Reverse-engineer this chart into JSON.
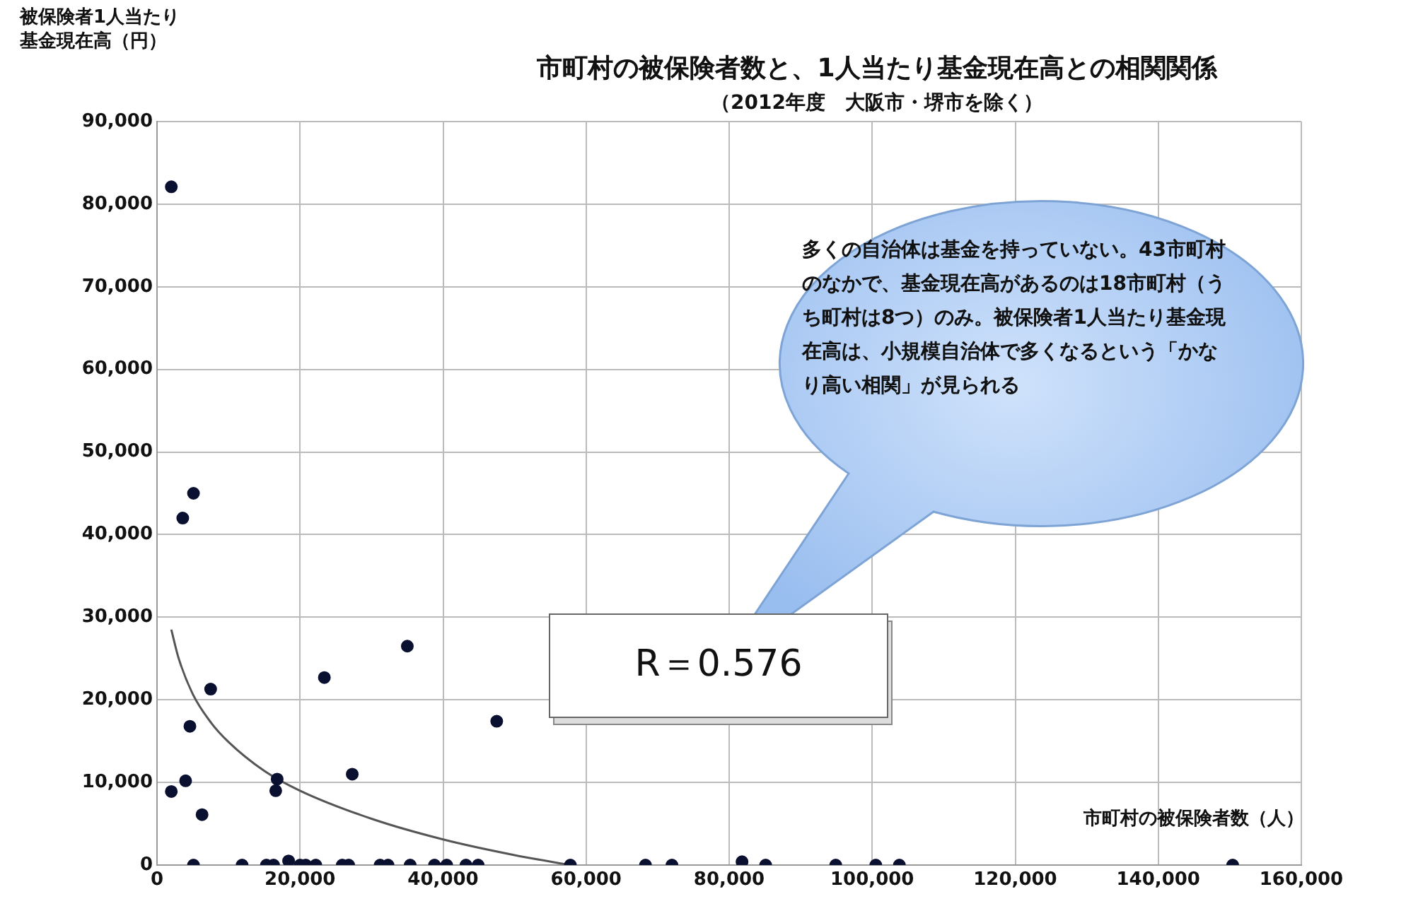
{
  "chart_data": {
    "type": "scatter",
    "title": "市町村の被保険者数と、1人当たり基金現在高との相関関係",
    "subtitle": "（2012年度　大阪市・堺市を除く）",
    "xlabel": "市町村の被保険者数（人）",
    "ylabel": "被保険者1人当たり基金現在高（円）",
    "xlim": [
      0,
      160000
    ],
    "xticks": [
      {
        "value": 0,
        "label": "0"
      },
      {
        "value": 20000,
        "label": "20,000"
      },
      {
        "value": 40000,
        "label": "40,000"
      },
      {
        "value": 60000,
        "label": "60,000"
      },
      {
        "value": 80000,
        "label": "80,000"
      },
      {
        "value": 100000,
        "label": "100,000"
      },
      {
        "value": 120000,
        "label": "120,000"
      },
      {
        "value": 140000,
        "label": "140,000"
      },
      {
        "value": 160000,
        "label": "160,000"
      }
    ],
    "ylim": [
      0,
      90000
    ],
    "yticks": [
      {
        "value": 0,
        "label": "0"
      },
      {
        "value": 10000,
        "label": "10,000"
      },
      {
        "value": 20000,
        "label": "20,000"
      },
      {
        "value": 30000,
        "label": "30,000"
      },
      {
        "value": 40000,
        "label": "40,000"
      },
      {
        "value": 50000,
        "label": "50,000"
      },
      {
        "value": 60000,
        "label": "60,000"
      },
      {
        "value": 70000,
        "label": "70,000"
      },
      {
        "value": 80000,
        "label": "80,000"
      },
      {
        "value": 90000,
        "label": "90,000"
      }
    ],
    "grid": true,
    "legend": false,
    "marker": "circle",
    "series": [
      {
        "color": "#0a1030",
        "x": [
          2000,
          5100,
          3600,
          2000,
          4000,
          6300,
          4600,
          7500,
          23400,
          35000,
          16800,
          16600,
          27300,
          47500,
          5100,
          11900,
          15300,
          16300,
          18400,
          20000,
          20800,
          22200,
          25900,
          26800,
          31200,
          32300,
          35400,
          38800,
          40500,
          43200,
          44900,
          57800,
          68300,
          72000,
          81800,
          85100,
          94900,
          100500,
          103800,
          150400
        ],
        "values": [
          82100,
          45000,
          42000,
          8900,
          10200,
          6100,
          16800,
          21300,
          22700,
          26500,
          10400,
          9000,
          11000,
          17400,
          0,
          0,
          0,
          0,
          500,
          0,
          0,
          0,
          0,
          0,
          0,
          0,
          0,
          0,
          0,
          0,
          0,
          0,
          0,
          0,
          400,
          0,
          0,
          0,
          0,
          0
        ]
      },
      {
        "type": "line",
        "color": "#555555",
        "marker": "none",
        "x": [
          2000,
          3000,
          5000,
          7500,
          10000,
          15000,
          20000,
          30000,
          40000,
          50000,
          57800
        ],
        "values": [
          28500,
          25100,
          20700,
          17300,
          14900,
          11400,
          9000,
          5600,
          3100,
          1200,
          0
        ]
      }
    ],
    "annotations": [
      "多くの自治体は基金を持っていない。43市町村のなかで、基金現在高があるのは18市町村（うち町村は8つ）のみ。被保険者1人当たり基金現在高は、小規模自治体で多くなるという「かなり高い相関」が見られる",
      "R＝0.576"
    ]
  }
}
